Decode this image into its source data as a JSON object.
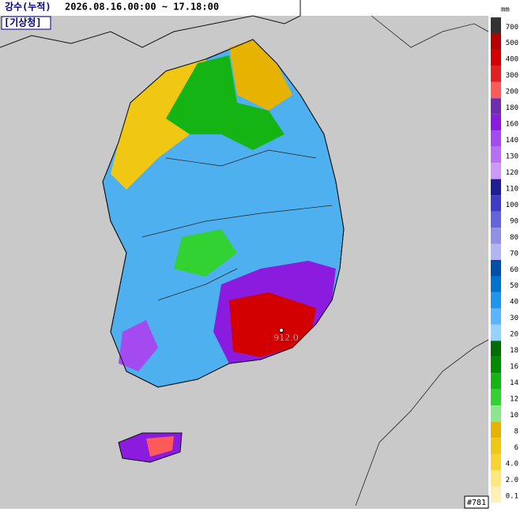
{
  "header": {
    "title": "강수(누적)",
    "period": "2026.08.16.00:00 ~ 17.18:00",
    "source": "[기상청]"
  },
  "legend": {
    "unit": "mm",
    "items": [
      {
        "label": "700",
        "color": "#333333"
      },
      {
        "label": "500",
        "color": "#b40000"
      },
      {
        "label": "400",
        "color": "#d20000"
      },
      {
        "label": "300",
        "color": "#e12020"
      },
      {
        "label": "200",
        "color": "#ff5a5a"
      },
      {
        "label": "180",
        "color": "#6f2db0"
      },
      {
        "label": "160",
        "color": "#8c1be0"
      },
      {
        "label": "140",
        "color": "#a34af0"
      },
      {
        "label": "130",
        "color": "#b86ef5"
      },
      {
        "label": "120",
        "color": "#cc99f8"
      },
      {
        "label": "110",
        "color": "#1e1e96"
      },
      {
        "label": "100",
        "color": "#3c3cc8"
      },
      {
        "label": "90",
        "color": "#6464dc"
      },
      {
        "label": "80",
        "color": "#9090e6"
      },
      {
        "label": "70",
        "color": "#b4b4f0"
      },
      {
        "label": "60",
        "color": "#0050aa"
      },
      {
        "label": "50",
        "color": "#0073d2"
      },
      {
        "label": "40",
        "color": "#1e96f0"
      },
      {
        "label": "30",
        "color": "#5ab4ff"
      },
      {
        "label": "20",
        "color": "#96d2ff"
      },
      {
        "label": "18",
        "color": "#006e00"
      },
      {
        "label": "16",
        "color": "#008c00"
      },
      {
        "label": "14",
        "color": "#14b414"
      },
      {
        "label": "12",
        "color": "#32d232"
      },
      {
        "label": "10",
        "color": "#8ce68c"
      },
      {
        "label": "8",
        "color": "#e6b400"
      },
      {
        "label": "6",
        "color": "#f0c814"
      },
      {
        "label": "4.0",
        "color": "#fad232"
      },
      {
        "label": "2.0",
        "color": "#ffe67d"
      },
      {
        "label": "0.1",
        "color": "#fff0b4"
      }
    ]
  },
  "map": {
    "max_label": "912.0",
    "station_count": "#781"
  }
}
